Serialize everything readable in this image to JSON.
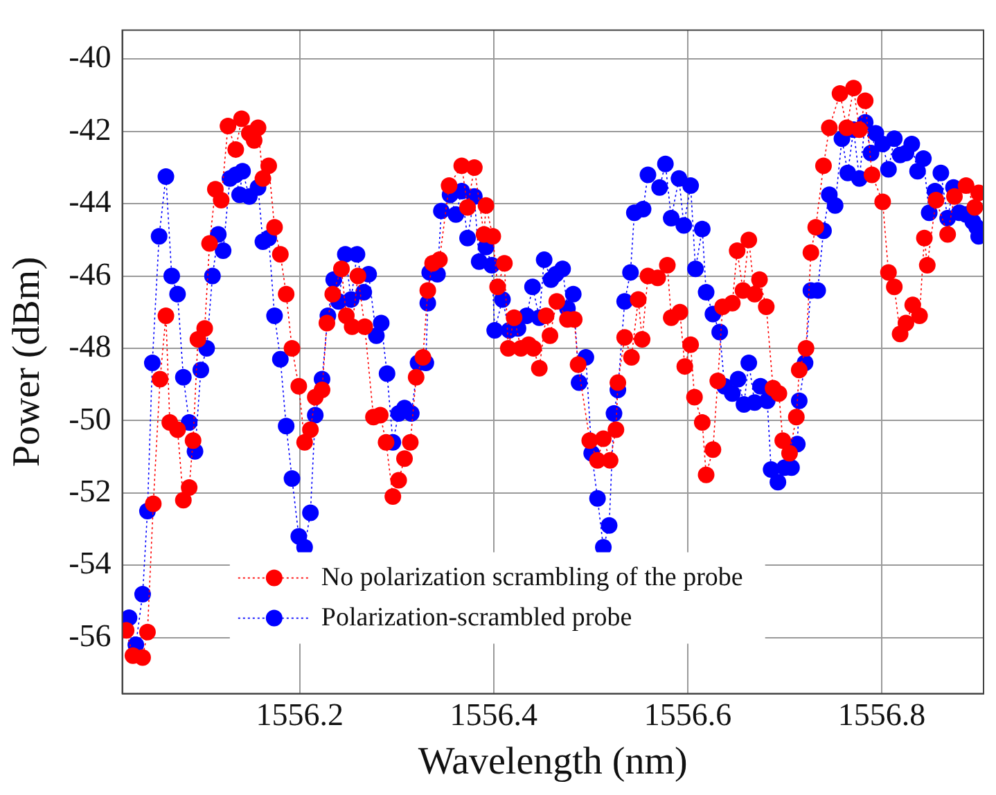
{
  "chart_data": {
    "type": "line",
    "xlabel": "Wavelength (nm)",
    "ylabel": "Power (dBm)",
    "xlim": [
      1556.017,
      1556.905
    ],
    "xticks": [
      1556.2,
      1556.4,
      1556.6,
      1556.8
    ],
    "ylim": [
      -57.55,
      -39.2
    ],
    "yticks": [
      -56,
      -54,
      -52,
      -50,
      -48,
      -46,
      -44,
      -42,
      -40
    ],
    "grid": true,
    "legend": "bottom",
    "marker": "circle",
    "line_style": "dotted",
    "series": [
      {
        "name": "No polarization scrambling of the probe",
        "color": "#ff0000",
        "x": [
          1556.021,
          1556.028,
          1556.038,
          1556.043,
          1556.049,
          1556.056,
          1556.062,
          1556.066,
          1556.074,
          1556.08,
          1556.086,
          1556.09,
          1556.095,
          1556.102,
          1556.107,
          1556.113,
          1556.119,
          1556.126,
          1556.134,
          1556.14,
          1556.148,
          1556.153,
          1556.157,
          1556.162,
          1556.168,
          1556.174,
          1556.18,
          1556.186,
          1556.192,
          1556.199,
          1556.205,
          1556.211,
          1556.216,
          1556.223,
          1556.228,
          1556.234,
          1556.243,
          1556.248,
          1556.254,
          1556.26,
          1556.267,
          1556.276,
          1556.283,
          1556.289,
          1556.296,
          1556.302,
          1556.308,
          1556.314,
          1556.32,
          1556.327,
          1556.332,
          1556.337,
          1556.344,
          1556.354,
          1556.367,
          1556.373,
          1556.38,
          1556.39,
          1556.392,
          1556.399,
          1556.404,
          1556.411,
          1556.415,
          1556.421,
          1556.428,
          1556.436,
          1556.441,
          1556.447,
          1556.454,
          1556.458,
          1556.465,
          1556.476,
          1556.483,
          1556.487,
          1556.499,
          1556.507,
          1556.513,
          1556.52,
          1556.526,
          1556.528,
          1556.535,
          1556.542,
          1556.549,
          1556.553,
          1556.559,
          1556.569,
          1556.579,
          1556.583,
          1556.592,
          1556.597,
          1556.603,
          1556.607,
          1556.615,
          1556.619,
          1556.626,
          1556.631,
          1556.636,
          1556.646,
          1556.651,
          1556.657,
          1556.663,
          1556.669,
          1556.674,
          1556.681,
          1556.688,
          1556.694,
          1556.698,
          1556.705,
          1556.712,
          1556.715,
          1556.722,
          1556.727,
          1556.732,
          1556.74,
          1556.746,
          1556.757,
          1556.764,
          1556.771,
          1556.777,
          1556.783,
          1556.79,
          1556.801,
          1556.807,
          1556.813,
          1556.819,
          1556.825,
          1556.832,
          1556.839,
          1556.844,
          1556.847,
          1556.856,
          1556.868,
          1556.875,
          1556.887,
          1556.896,
          1556.9
        ],
        "values": [
          -55.8,
          -56.5,
          -56.55,
          -55.85,
          -52.3,
          -48.85,
          -47.1,
          -50.05,
          -50.25,
          -52.2,
          -51.85,
          -50.55,
          -47.75,
          -47.45,
          -45.1,
          -43.6,
          -43.9,
          -41.85,
          -42.5,
          -41.65,
          -42.05,
          -42.25,
          -41.9,
          -43.3,
          -42.95,
          -44.65,
          -45.4,
          -46.5,
          -48,
          -49.05,
          -50.6,
          -50.25,
          -49.35,
          -49.15,
          -47.3,
          -46.5,
          -45.8,
          -47.1,
          -47.4,
          -46,
          -47.4,
          -49.9,
          -49.85,
          -50.6,
          -52.1,
          -51.65,
          -51.05,
          -50.6,
          -48.8,
          -48.25,
          -46.4,
          -45.65,
          -45.55,
          -43.5,
          -42.95,
          -44.1,
          -43,
          -44.85,
          -44.05,
          -44.9,
          -46.3,
          -45.65,
          -48,
          -47.15,
          -48,
          -47.9,
          -48,
          -48.55,
          -47.1,
          -47.65,
          -46.7,
          -47.2,
          -47.2,
          -48.45,
          -50.55,
          -51.1,
          -50.5,
          -51.1,
          -50.25,
          -48.95,
          -47.7,
          -48.25,
          -46.65,
          -47.75,
          -46,
          -46.05,
          -45.7,
          -47.15,
          -47,
          -48.5,
          -47.9,
          -49.35,
          -50.05,
          -51.5,
          -50.8,
          -48.9,
          -46.85,
          -46.75,
          -45.3,
          -46.4,
          -45,
          -46.5,
          -46.1,
          -46.85,
          -49.1,
          -49.25,
          -50.55,
          -50.9,
          -49.9,
          -48.6,
          -48,
          -45.35,
          -44.65,
          -42.95,
          -41.9,
          -40.95,
          -41.9,
          -40.8,
          -41.95,
          -41.15,
          -43.2,
          -43.95,
          -45.9,
          -46.3,
          -47.6,
          -47.3,
          -46.8,
          -47.1,
          -44.95,
          -45.7,
          -43.9,
          -44.85,
          -43.8,
          -43.5,
          -44.1,
          -43.7
        ]
      },
      {
        "name": "Polarization-scrambled probe",
        "color": "#0000ff",
        "x": [
          1556.024,
          1556.031,
          1556.038,
          1556.043,
          1556.048,
          1556.055,
          1556.062,
          1556.068,
          1556.074,
          1556.08,
          1556.086,
          1556.092,
          1556.098,
          1556.104,
          1556.11,
          1556.116,
          1556.121,
          1556.128,
          1556.134,
          1556.138,
          1556.141,
          1556.148,
          1556.157,
          1556.162,
          1556.168,
          1556.174,
          1556.18,
          1556.186,
          1556.192,
          1556.199,
          1556.205,
          1556.211,
          1556.216,
          1556.223,
          1556.229,
          1556.235,
          1556.24,
          1556.247,
          1556.253,
          1556.259,
          1556.266,
          1556.271,
          1556.279,
          1556.284,
          1556.29,
          1556.296,
          1556.302,
          1556.308,
          1556.315,
          1556.322,
          1556.33,
          1556.332,
          1556.334,
          1556.342,
          1556.346,
          1556.355,
          1556.361,
          1556.367,
          1556.373,
          1556.38,
          1556.385,
          1556.392,
          1556.398,
          1556.401,
          1556.409,
          1556.416,
          1556.425,
          1556.434,
          1556.44,
          1556.447,
          1556.452,
          1556.459,
          1556.464,
          1556.471,
          1556.476,
          1556.482,
          1556.488,
          1556.495,
          1556.501,
          1556.507,
          1556.513,
          1556.519,
          1556.524,
          1556.528,
          1556.535,
          1556.541,
          1556.545,
          1556.554,
          1556.559,
          1556.571,
          1556.577,
          1556.583,
          1556.591,
          1556.596,
          1556.603,
          1556.608,
          1556.615,
          1556.619,
          1556.626,
          1556.633,
          1556.638,
          1556.646,
          1556.652,
          1556.658,
          1556.663,
          1556.669,
          1556.675,
          1556.682,
          1556.686,
          1556.693,
          1556.7,
          1556.707,
          1556.713,
          1556.715,
          1556.721,
          1556.727,
          1556.734,
          1556.74,
          1556.746,
          1556.752,
          1556.759,
          1556.765,
          1556.771,
          1556.777,
          1556.783,
          1556.789,
          1556.794,
          1556.801,
          1556.807,
          1556.813,
          1556.819,
          1556.825,
          1556.831,
          1556.837,
          1556.843,
          1556.849,
          1556.855,
          1556.861,
          1556.868,
          1556.874,
          1556.88,
          1556.887,
          1556.894,
          1556.898,
          1556.9
        ],
        "values": [
          -55.45,
          -56.2,
          -54.8,
          -52.5,
          -48.4,
          -44.9,
          -43.25,
          -46,
          -46.5,
          -48.8,
          -50.05,
          -50.85,
          -48.6,
          -48,
          -46,
          -44.85,
          -45.3,
          -43.3,
          -43.2,
          -43.75,
          -43.1,
          -43.8,
          -43.55,
          -45.05,
          -44.95,
          -47.1,
          -48.3,
          -50.15,
          -51.6,
          -53.2,
          -53.5,
          -52.55,
          -49.85,
          -48.85,
          -47.1,
          -46.1,
          -46.7,
          -45.4,
          -46.65,
          -45.4,
          -46.45,
          -45.95,
          -47.65,
          -47.3,
          -48.7,
          -50.6,
          -49.8,
          -49.65,
          -49.8,
          -48.4,
          -48.4,
          -46.75,
          -45.9,
          -45.95,
          -44.2,
          -43.75,
          -44.3,
          -43.65,
          -44.95,
          -43.8,
          -45.6,
          -45.2,
          -45.7,
          -47.5,
          -46.65,
          -47.5,
          -47.45,
          -47.1,
          -46.3,
          -47.15,
          -45.55,
          -46.1,
          -45.95,
          -45.8,
          -46.9,
          -46.5,
          -48.95,
          -48.25,
          -50.9,
          -52.15,
          -53.5,
          -52.9,
          -49.8,
          -49.15,
          -46.7,
          -45.9,
          -44.25,
          -44.15,
          -43.2,
          -43.55,
          -42.9,
          -44.4,
          -43.3,
          -44.6,
          -43.5,
          -45.8,
          -44.7,
          -46.45,
          -47.05,
          -47.55,
          -49.05,
          -49.25,
          -48.85,
          -49.55,
          -48.4,
          -49.5,
          -49.05,
          -49.45,
          -51.35,
          -51.7,
          -51.3,
          -51.3,
          -50.65,
          -49.45,
          -48.4,
          -46.4,
          -46.4,
          -44.75,
          -43.75,
          -44.05,
          -42.2,
          -43.15,
          -41.95,
          -43.3,
          -41.75,
          -42.6,
          -42.05,
          -42.35,
          -43.05,
          -42.2,
          -42.65,
          -42.6,
          -42.35,
          -43.1,
          -42.75,
          -44.25,
          -43.65,
          -43.15,
          -44.4,
          -43.55,
          -44.25,
          -44.3,
          -44.5,
          -44.65,
          -44.9
        ]
      }
    ]
  }
}
